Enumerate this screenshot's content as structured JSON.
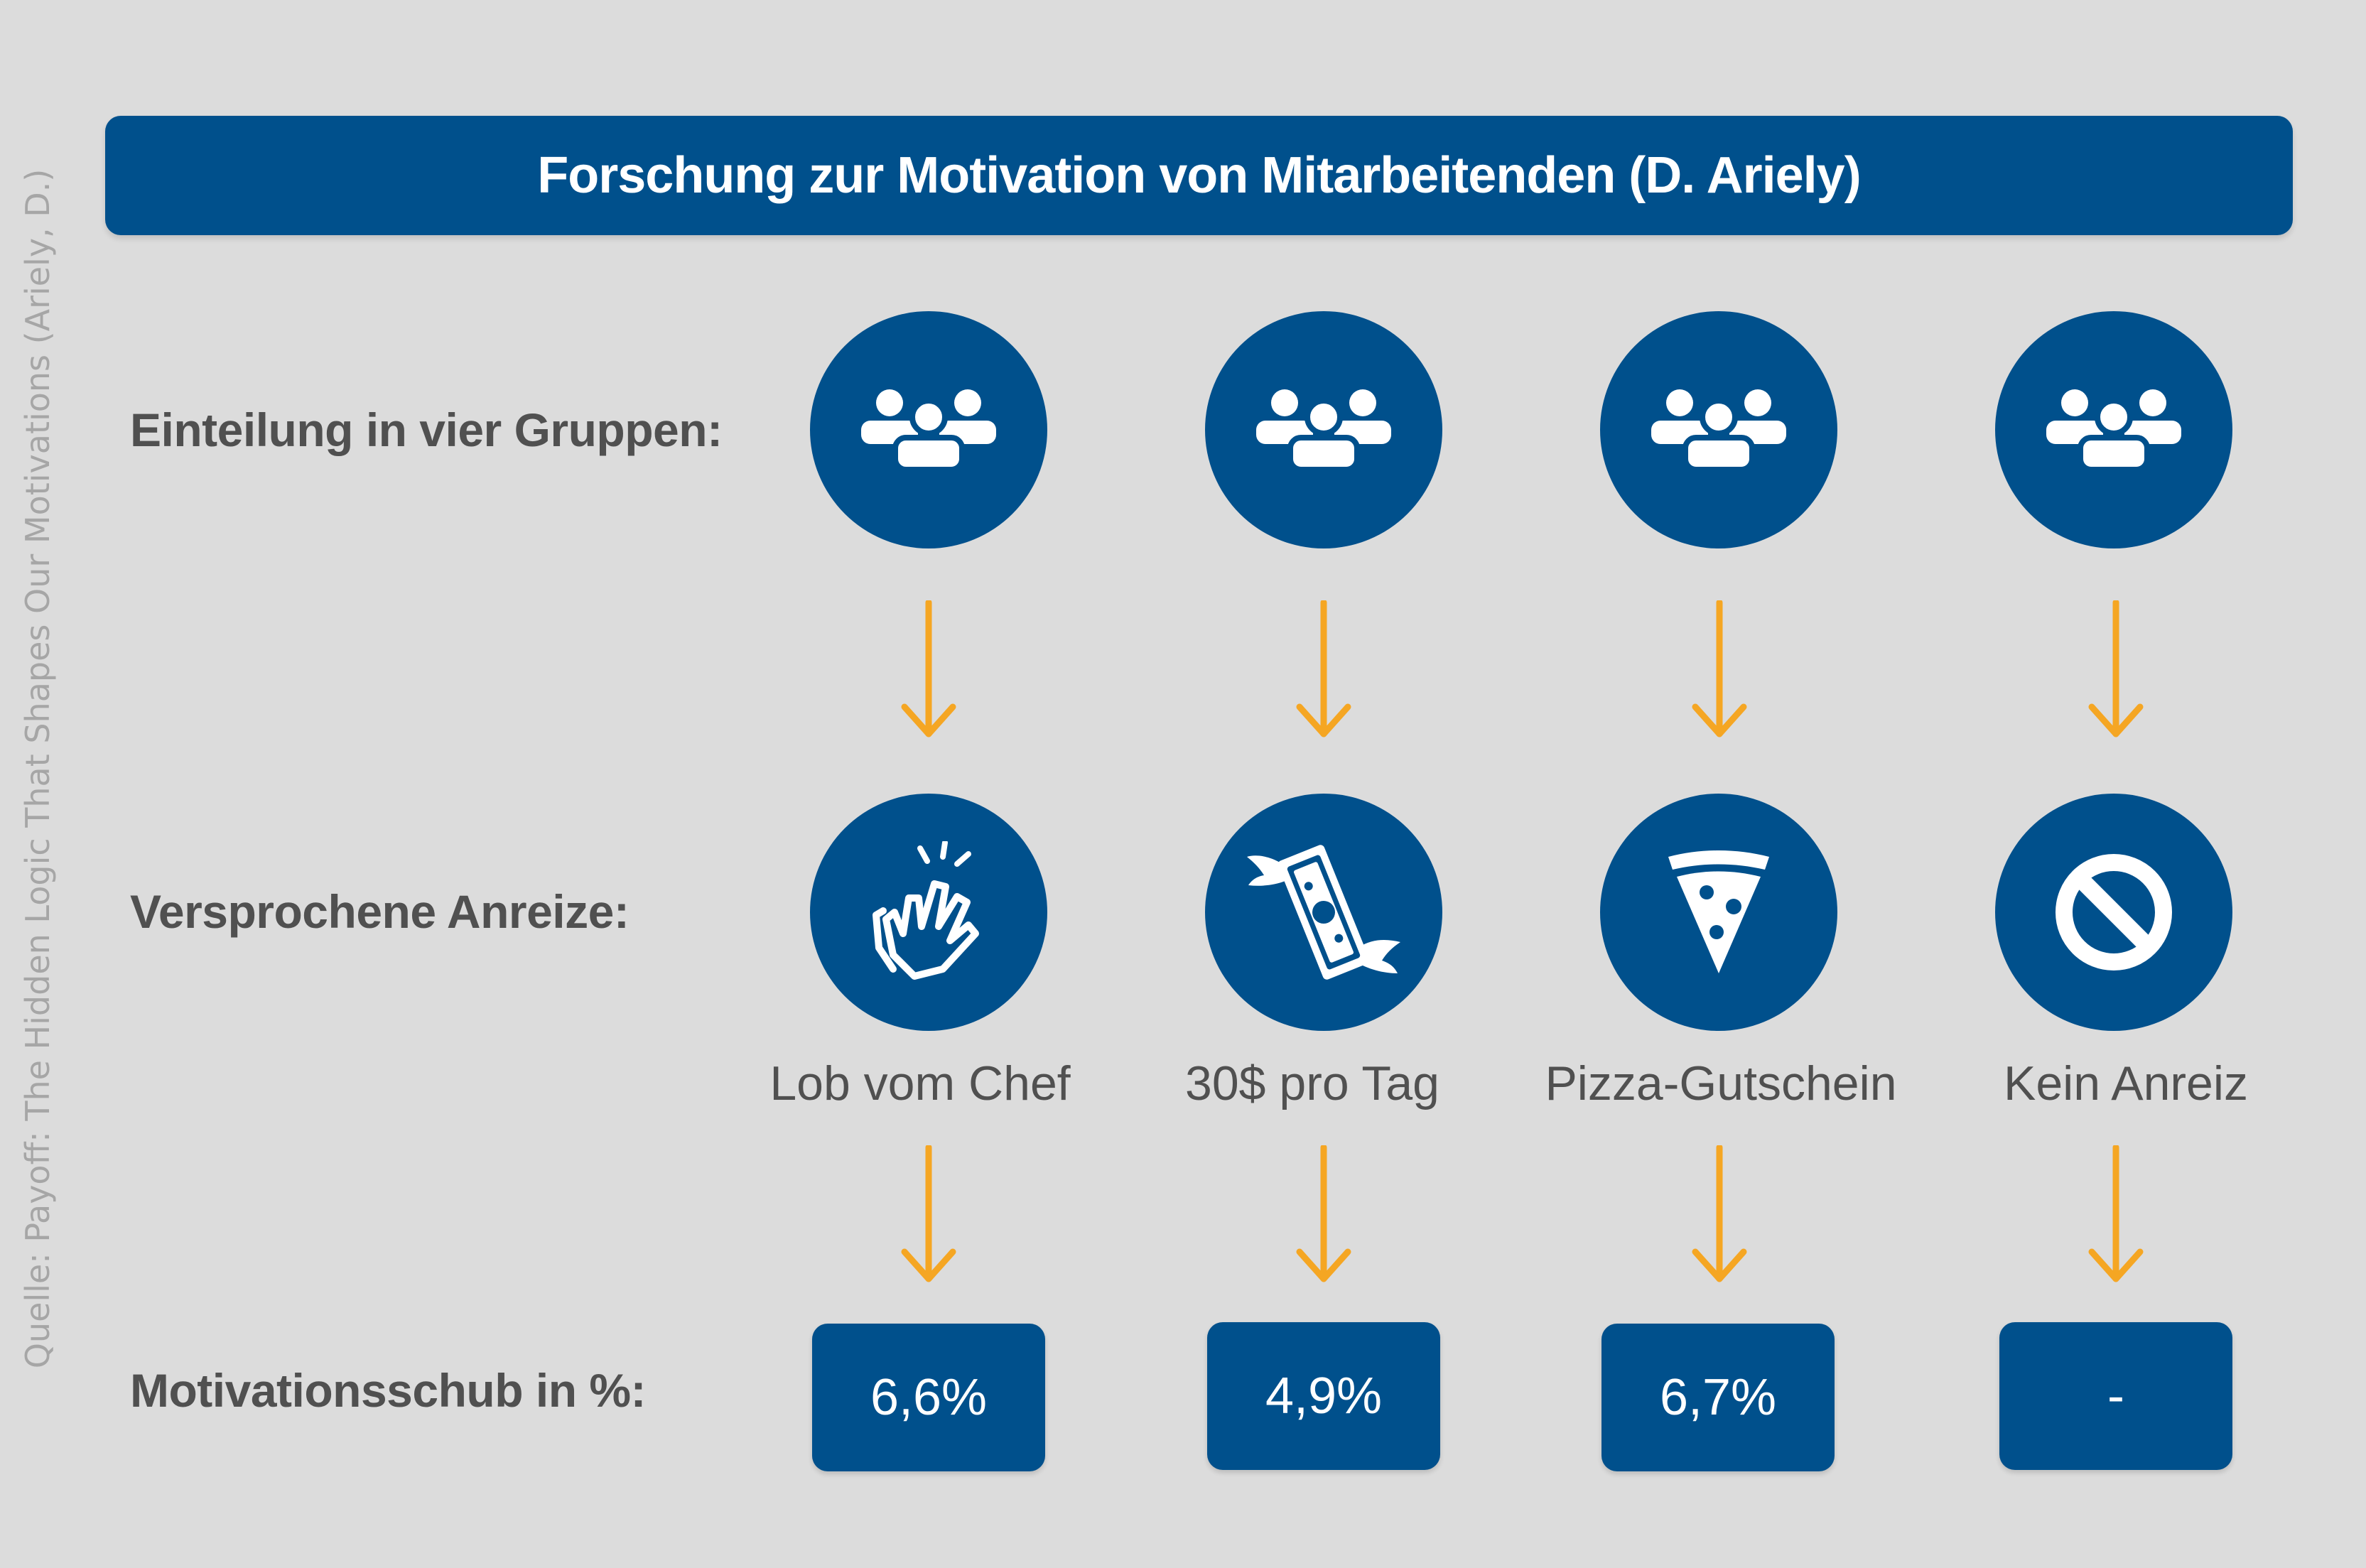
{
  "source": "Quelle: Payoff: The Hidden Logic That Shapes Our Motivations (Ariely, D.)",
  "title": "Forschung zur Motivation von Mitarbeitenden (D. Ariely)",
  "rows": {
    "groups_label": "Einteilung in vier Gruppen:",
    "incentives_label": "Versprochene Anreize:",
    "boost_label": "Motivationsschub in %:"
  },
  "groups": [
    {
      "icon": "people-group-icon",
      "incentive_icon": "clapping-hands-icon",
      "incentive": "Lob vom Chef",
      "boost": "6,6%"
    },
    {
      "icon": "people-group-icon",
      "incentive_icon": "flying-money-icon",
      "incentive": "30$ pro Tag",
      "boost": "4,9%"
    },
    {
      "icon": "people-group-icon",
      "incentive_icon": "pizza-slice-icon",
      "incentive": "Pizza-Gutschein",
      "boost": "6,7%"
    },
    {
      "icon": "people-group-icon",
      "incentive_icon": "no-entry-icon",
      "incentive": "Kein Anreiz",
      "boost": "-"
    }
  ],
  "colors": {
    "primary": "#00508c",
    "arrow": "#f5a623",
    "background": "#dcdcdc",
    "label_text": "#505050",
    "source_text": "#a6a6a6"
  }
}
